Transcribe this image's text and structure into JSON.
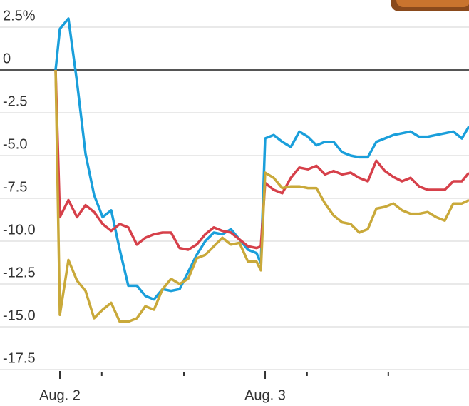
{
  "chart_data": {
    "type": "line",
    "x": [
      -0.5,
      0,
      1,
      2,
      3,
      4,
      5,
      6,
      7,
      8,
      9,
      10,
      11,
      12,
      13,
      14,
      15,
      16,
      17,
      18,
      19,
      20,
      21,
      22,
      23,
      23.5,
      24,
      25,
      26,
      27,
      28,
      29,
      30,
      31,
      32,
      33,
      34,
      35,
      36,
      37,
      38,
      39,
      40,
      41,
      42,
      43,
      44,
      45,
      46,
      47,
      47.83
    ],
    "series": [
      {
        "color": "#1a9fdb",
        "values": [
          0,
          2.4,
          3.0,
          -0.7,
          -4.9,
          -7.3,
          -8.6,
          -8.2,
          -10.5,
          -12.6,
          -12.6,
          -13.2,
          -13.4,
          -12.8,
          -12.9,
          -12.8,
          -11.8,
          -10.8,
          -10.0,
          -9.5,
          -9.6,
          -9.3,
          -9.9,
          -10.5,
          -10.7,
          -11.3,
          -4.0,
          -3.8,
          -4.2,
          -4.5,
          -3.6,
          -3.9,
          -4.4,
          -4.2,
          -4.2,
          -4.8,
          -5.0,
          -5.1,
          -5.1,
          -4.2,
          -4.0,
          -3.8,
          -3.7,
          -3.6,
          -3.9,
          -3.9,
          -3.8,
          -3.7,
          -3.6,
          -4.0,
          -3.3
        ]
      },
      {
        "color": "#d6404a",
        "values": [
          0,
          -8.6,
          -7.6,
          -8.6,
          -7.9,
          -8.3,
          -9.0,
          -9.4,
          -9.0,
          -9.2,
          -10.2,
          -9.8,
          -9.6,
          -9.5,
          -9.5,
          -10.4,
          -10.5,
          -10.2,
          -9.6,
          -9.2,
          -9.4,
          -9.5,
          -9.9,
          -10.3,
          -10.4,
          -10.3,
          -6.6,
          -7.0,
          -7.2,
          -6.3,
          -5.7,
          -5.8,
          -5.6,
          -6.1,
          -5.9,
          -6.1,
          -6.0,
          -6.3,
          -6.5,
          -5.3,
          -5.9,
          -6.25,
          -6.5,
          -6.3,
          -6.8,
          -7.0,
          -7.0,
          -7.0,
          -6.5,
          -6.5,
          -6.0
        ]
      },
      {
        "color": "#c9a93a",
        "values": [
          0,
          -14.3,
          -11.1,
          -12.3,
          -12.9,
          -14.5,
          -14.0,
          -13.6,
          -14.7,
          -14.7,
          -14.5,
          -13.8,
          -14.0,
          -12.8,
          -12.2,
          -12.5,
          -12.2,
          -11.0,
          -10.8,
          -10.3,
          -9.8,
          -10.2,
          -10.1,
          -11.2,
          -11.2,
          -11.7,
          -6.0,
          -6.3,
          -6.9,
          -6.8,
          -6.8,
          -6.9,
          -6.9,
          -7.8,
          -8.5,
          -8.9,
          -9.0,
          -9.5,
          -9.3,
          -8.1,
          -8.0,
          -7.8,
          -8.2,
          -8.4,
          -8.4,
          -8.3,
          -8.6,
          -8.8,
          -7.8,
          -7.8,
          -7.6
        ]
      }
    ],
    "xlim": [
      -0.5,
      47.83
    ],
    "xticks": [
      {
        "value": 0,
        "label": "Aug. 2"
      },
      {
        "value": 24,
        "label": "Aug. 3"
      }
    ],
    "minor_xticks": [
      4.9,
      14.5,
      28.9,
      38.4
    ],
    "ylim": [
      -17.5,
      2.5
    ],
    "yticks": [
      {
        "value": 2.5,
        "label": "2.5%"
      },
      0,
      -2.5,
      {
        "value": -5,
        "label": "-5.0"
      },
      -7.5,
      {
        "value": -10,
        "label": "-10.0"
      },
      -12.5,
      {
        "value": -15,
        "label": "-15.0"
      },
      -17.5
    ],
    "grid": true
  }
}
